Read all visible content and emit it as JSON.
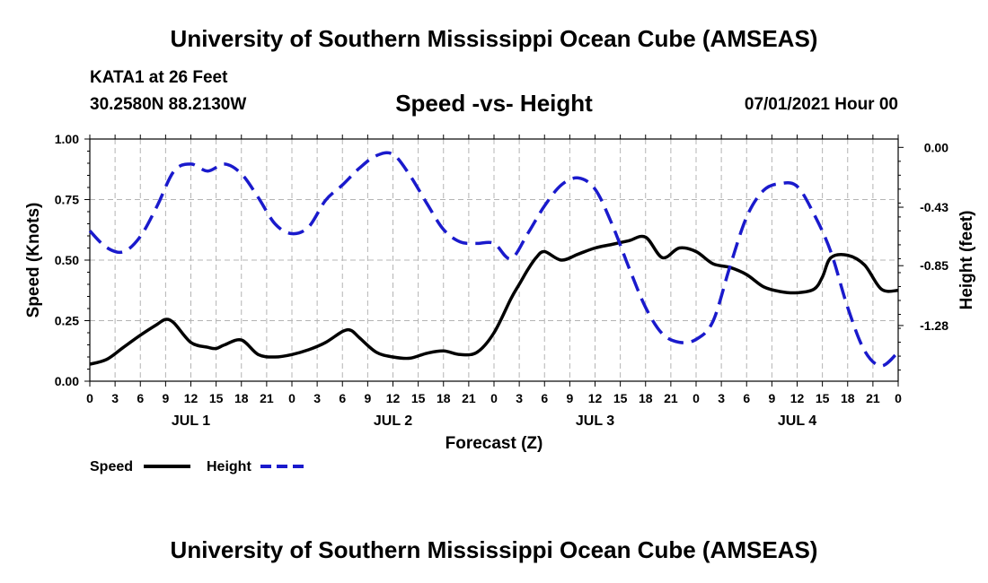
{
  "header": {
    "title": "University of Southern Mississippi Ocean Cube (AMSEAS)",
    "station": "KATA1 at 26 Feet",
    "coordinates": "30.2580N  88.2130W",
    "plot_title": "Speed -vs- Height",
    "date": "07/01/2021 Hour 00"
  },
  "footer": {
    "title": "University of Southern Mississippi Ocean Cube (AMSEAS)"
  },
  "colors": {
    "speed": "#000000",
    "height": "#1a1acc",
    "grid": "#b4b4b4"
  },
  "chart_data": {
    "type": "line",
    "title": "Speed -vs- Height",
    "xlabel": "Forecast (Z)",
    "ylabel": "Speed (Knots)",
    "y2label": "Height (feet)",
    "xlim": [
      0,
      96
    ],
    "ylim": [
      0,
      1.0
    ],
    "y2lim": [
      -1.68,
      0.06
    ],
    "x_ticks": [
      0,
      3,
      6,
      9,
      12,
      15,
      18,
      21,
      24,
      27,
      30,
      33,
      36,
      39,
      42,
      45,
      48,
      51,
      54,
      57,
      60,
      63,
      66,
      69,
      72,
      75,
      78,
      81,
      84,
      87,
      90,
      93,
      96
    ],
    "x_tick_labels": [
      "0",
      "3",
      "6",
      "9",
      "12",
      "15",
      "18",
      "21",
      "0",
      "3",
      "6",
      "9",
      "12",
      "15",
      "18",
      "21",
      "0",
      "3",
      "6",
      "9",
      "12",
      "15",
      "18",
      "21",
      "0",
      "3",
      "6",
      "9",
      "12",
      "15",
      "18",
      "21",
      "0"
    ],
    "day_labels": [
      {
        "x": 12,
        "label": "JUL 1"
      },
      {
        "x": 36,
        "label": "JUL 2"
      },
      {
        "x": 60,
        "label": "JUL 3"
      },
      {
        "x": 84,
        "label": "JUL 4"
      }
    ],
    "y_ticks": [
      0,
      0.25,
      0.5,
      0.75,
      1.0
    ],
    "y_tick_labels": [
      "0.00",
      "0.25",
      "0.50",
      "0.75",
      "1.00"
    ],
    "y2_ticks": [
      0.0,
      -0.43,
      -0.85,
      -1.28
    ],
    "y2_tick_labels": [
      "0.00",
      "-0.43",
      "-0.85",
      "-1.28"
    ],
    "series": [
      {
        "name": "Speed",
        "axis": "left",
        "style": "solid",
        "x": [
          0,
          2,
          4,
          6,
          8,
          9,
          10,
          12,
          14,
          15,
          16,
          18,
          20,
          22,
          24,
          26,
          28,
          30,
          31,
          32,
          34,
          36,
          38,
          40,
          42,
          44,
          46,
          48,
          50,
          51,
          52,
          53,
          54,
          56,
          58,
          60,
          62,
          64,
          66,
          68,
          70,
          72,
          74,
          76,
          78,
          80,
          82,
          84,
          86,
          87,
          88,
          90,
          92,
          94,
          96
        ],
        "values": [
          0.07,
          0.09,
          0.14,
          0.19,
          0.235,
          0.255,
          0.24,
          0.16,
          0.14,
          0.135,
          0.15,
          0.17,
          0.11,
          0.1,
          0.11,
          0.13,
          0.16,
          0.205,
          0.21,
          0.18,
          0.12,
          0.1,
          0.095,
          0.115,
          0.125,
          0.11,
          0.12,
          0.2,
          0.34,
          0.4,
          0.46,
          0.51,
          0.535,
          0.5,
          0.525,
          0.55,
          0.565,
          0.58,
          0.595,
          0.51,
          0.55,
          0.535,
          0.485,
          0.47,
          0.44,
          0.39,
          0.37,
          0.365,
          0.38,
          0.43,
          0.51,
          0.52,
          0.48,
          0.38,
          0.375
        ]
      },
      {
        "name": "Height",
        "axis": "right",
        "style": "dashed",
        "x": [
          0,
          2,
          4,
          6,
          8,
          10,
          12,
          14,
          16,
          18,
          20,
          22,
          24,
          26,
          28,
          30,
          32,
          34,
          36,
          38,
          40,
          42,
          44,
          46,
          48,
          50,
          52,
          54,
          56,
          58,
          60,
          62,
          64,
          66,
          68,
          70,
          72,
          74,
          76,
          78,
          80,
          82,
          84,
          86,
          88,
          90,
          92,
          94,
          96
        ],
        "values": [
          -0.6,
          -0.72,
          -0.75,
          -0.64,
          -0.42,
          -0.17,
          -0.12,
          -0.17,
          -0.12,
          -0.19,
          -0.36,
          -0.55,
          -0.62,
          -0.57,
          -0.38,
          -0.27,
          -0.15,
          -0.06,
          -0.05,
          -0.2,
          -0.4,
          -0.59,
          -0.68,
          -0.69,
          -0.69,
          -0.8,
          -0.62,
          -0.42,
          -0.27,
          -0.22,
          -0.3,
          -0.55,
          -0.86,
          -1.15,
          -1.34,
          -1.4,
          -1.38,
          -1.25,
          -0.86,
          -0.5,
          -0.31,
          -0.26,
          -0.28,
          -0.48,
          -0.75,
          -1.15,
          -1.46,
          -1.57,
          -1.47
        ]
      }
    ],
    "legend": [
      {
        "label": "Speed",
        "style": "solid"
      },
      {
        "label": "Height",
        "style": "dashed"
      }
    ]
  }
}
